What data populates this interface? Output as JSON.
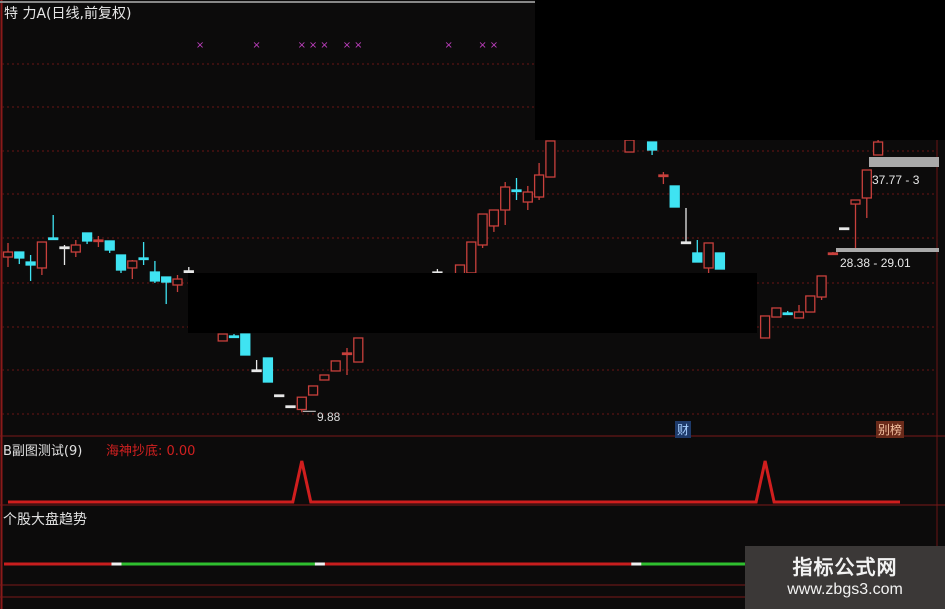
{
  "main_pane": {
    "title": "特 力A(日线,前复权)",
    "low_label": "9.88",
    "range_upper": "37.77 - 3",
    "range_lower": "28.38 - 29.01",
    "marker_caicai": "财",
    "marker_bang": "别榜"
  },
  "sub_pane_1": {
    "title": "B副图测试(9)",
    "indicator": "海神抄底: 0.00"
  },
  "sub_pane_2": {
    "title": "个股大盘趋势"
  },
  "watermark": {
    "name": "指标公式网",
    "url": "www.zbgs3.com"
  },
  "colors": {
    "up": "#c8403c",
    "down": "#3fe3f2",
    "flat": "#e8e8e8",
    "marker": "#c040c0",
    "grid": "#6a1414",
    "trend_up": "#2fbf2f",
    "trend_down": "#c81e1e"
  },
  "chart_data": [
    {
      "type": "candlestick",
      "title": "特 力A(日线,前复权)",
      "fields": [
        "day",
        "open",
        "high",
        "low",
        "close",
        "color_override"
      ],
      "candles": [
        [
          0,
          27.58,
          29.18,
          26.44,
          28.15
        ],
        [
          1,
          28.15,
          28.15,
          26.78,
          27.47
        ],
        [
          2,
          27.01,
          27.81,
          24.85,
          26.67
        ],
        [
          3,
          26.33,
          29.29,
          25.53,
          29.29
        ],
        [
          4,
          29.75,
          32.37,
          29.52,
          29.75,
          "down"
        ],
        [
          5,
          28.72,
          28.95,
          26.67,
          28.72,
          "flat"
        ],
        [
          6,
          28.15,
          29.52,
          27.58,
          28.95
        ],
        [
          7,
          30.32,
          30.32,
          29.06,
          29.41
        ],
        [
          8,
          29.52,
          29.98,
          28.72,
          29.52,
          "up"
        ],
        [
          9,
          29.41,
          29.41,
          28.04,
          28.38
        ],
        [
          10,
          27.81,
          27.81,
          25.76,
          26.1
        ],
        [
          11,
          26.33,
          27.24,
          25.07,
          27.13
        ],
        [
          12,
          27.47,
          29.29,
          26.67,
          27.47,
          "down"
        ],
        [
          13,
          25.87,
          27.13,
          24.62,
          24.85
        ],
        [
          14,
          25.3,
          25.3,
          22.22,
          24.73
        ],
        [
          15,
          24.39,
          25.53,
          23.59,
          25.07
        ],
        [
          16,
          26.0,
          26.44,
          25.76,
          26.0,
          "flat"
        ],
        [
          19,
          18.01,
          18.8,
          18.01,
          18.8
        ],
        [
          20,
          18.58,
          18.8,
          18.35,
          18.58,
          "down"
        ],
        [
          21,
          18.8,
          18.8,
          16.41,
          16.41
        ],
        [
          22,
          14.7,
          15.84,
          14.7,
          14.7,
          "flat"
        ],
        [
          23,
          16.07,
          16.07,
          13.33,
          13.33
        ],
        [
          24,
          11.85,
          11.85,
          11.85,
          11.85,
          "flat"
        ],
        [
          25,
          10.6,
          10.6,
          10.6,
          10.6,
          "flat"
        ],
        [
          26,
          10.2,
          11.62,
          9.88,
          11.6
        ],
        [
          27,
          11.85,
          12.88,
          11.85,
          12.88
        ],
        [
          28,
          13.56,
          14.13,
          13.56,
          14.13
        ],
        [
          29,
          14.59,
          15.73,
          14.59,
          15.73
        ],
        [
          30,
          16.64,
          17.21,
          14.13,
          16.64,
          "up"
        ],
        [
          31,
          15.61,
          18.35,
          15.61,
          18.35
        ],
        [
          38,
          25.87,
          26.21,
          25.64,
          25.87,
          "flat"
        ],
        [
          40,
          25.64,
          26.67,
          25.64,
          26.67
        ],
        [
          41,
          25.76,
          29.29,
          25.42,
          29.29
        ],
        [
          42,
          28.95,
          32.48,
          28.61,
          32.48
        ],
        [
          43,
          31.12,
          32.94,
          30.44,
          32.94
        ],
        [
          44,
          32.94,
          36.13,
          31.23,
          35.56
        ],
        [
          45,
          35.22,
          36.59,
          34.08,
          35.22,
          "down"
        ],
        [
          46,
          33.85,
          35.68,
          32.94,
          34.99
        ],
        [
          47,
          34.42,
          38.3,
          34.08,
          36.93
        ],
        [
          48,
          36.7,
          40.81,
          36.7,
          40.81
        ],
        [
          55,
          39.55,
          40.92,
          39.55,
          40.92
        ],
        [
          57,
          40.69,
          40.69,
          39.21,
          39.78
        ],
        [
          58,
          36.93,
          37.27,
          35.9,
          36.93,
          "up"
        ],
        [
          59,
          35.68,
          35.68,
          33.28,
          33.28
        ],
        [
          60,
          29.29,
          33.17,
          29.29,
          29.29,
          "flat"
        ],
        [
          61,
          28.04,
          29.52,
          27.01,
          27.01
        ],
        [
          62,
          26.33,
          29.18,
          25.53,
          29.18
        ],
        [
          63,
          28.04,
          28.04,
          26.21,
          26.21
        ],
        [
          67,
          18.35,
          20.86,
          18.35,
          20.86
        ],
        [
          68,
          20.74,
          21.77,
          20.74,
          21.77
        ],
        [
          69,
          21.2,
          21.43,
          20.97,
          21.2,
          "down"
        ],
        [
          70,
          20.63,
          22.11,
          20.63,
          21.31
        ],
        [
          71,
          21.31,
          23.14,
          21.31,
          23.14
        ],
        [
          72,
          23.02,
          25.42,
          22.68,
          25.42
        ],
        [
          73,
          28.04,
          28.15,
          27.81,
          28.04,
          "up"
        ],
        [
          74,
          30.89,
          30.89,
          30.89,
          30.89,
          "flat"
        ],
        [
          75,
          33.62,
          34.08,
          28.61,
          34.08
        ],
        [
          76,
          34.31,
          37.5,
          32.03,
          37.5
        ],
        [
          77,
          39.21,
          41.5,
          39.21,
          40.69
        ]
      ],
      "signal_markers_days": [
        17,
        22,
        26,
        27,
        28,
        30,
        31,
        39,
        42,
        43
      ],
      "annotations": [
        {
          "day": 26,
          "price": 9.88,
          "text": "9.88"
        }
      ],
      "ranges": [
        "37.77 - 3",
        "28.38 - 29.01"
      ],
      "scale": "linear",
      "grid": "dashed-horizontal"
    },
    {
      "type": "line",
      "title": "B副图测试(9)",
      "legend": "海神抄底: 0.00",
      "spike_days": [
        26,
        67
      ],
      "baseline": 0,
      "spike_value": 1
    },
    {
      "type": "line",
      "title": "个股大盘趋势",
      "segments": [
        {
          "from": 0,
          "to": 9,
          "state": "down"
        },
        {
          "from": 10,
          "to": 27,
          "state": "up"
        },
        {
          "from": 28,
          "to": 55,
          "state": "down"
        },
        {
          "from": 56,
          "to": 65,
          "state": "up"
        }
      ]
    }
  ]
}
